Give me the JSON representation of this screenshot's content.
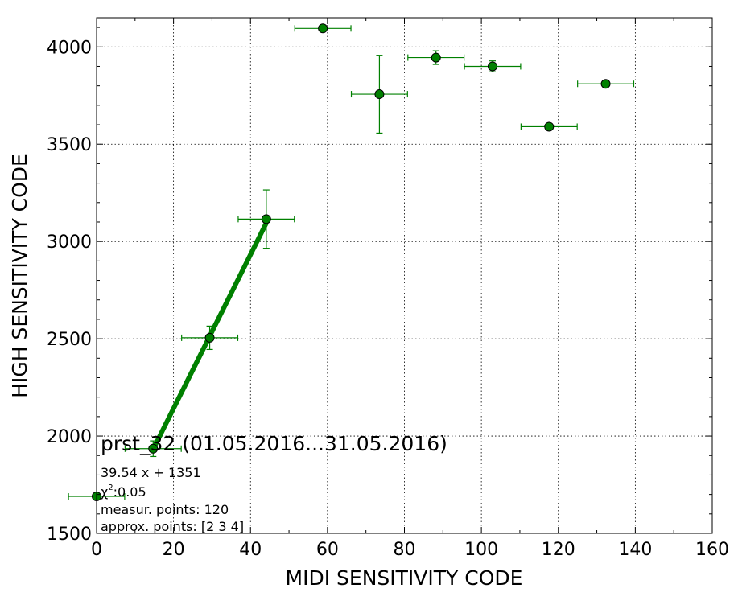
{
  "chart_data": {
    "type": "scatter",
    "xlabel": "MIDI SENSITIVITY CODE",
    "ylabel": "HIGH SENSITIVITY CODE",
    "xlim": [
      0,
      160
    ],
    "ylim": [
      1500,
      4150
    ],
    "xticks": [
      0,
      20,
      40,
      60,
      80,
      100,
      120,
      140,
      160
    ],
    "yticks": [
      1500,
      2000,
      2500,
      3000,
      3500,
      4000
    ],
    "grid": true,
    "points": [
      {
        "x": 0,
        "y": 1690,
        "xerr": 7.3,
        "yerr": 0
      },
      {
        "x": 14.7,
        "y": 1935,
        "xerr": 7.3,
        "yerr": 40
      },
      {
        "x": 29.4,
        "y": 2505,
        "xerr": 7.3,
        "yerr": 60
      },
      {
        "x": 44.1,
        "y": 3115,
        "xerr": 7.3,
        "yerr": 150
      },
      {
        "x": 58.8,
        "y": 4095,
        "xerr": 7.3,
        "yerr": 0
      },
      {
        "x": 73.5,
        "y": 3757,
        "xerr": 7.3,
        "yerr": 200
      },
      {
        "x": 88.2,
        "y": 3945,
        "xerr": 7.3,
        "yerr": 35
      },
      {
        "x": 102.9,
        "y": 3900,
        "xerr": 7.3,
        "yerr": 28
      },
      {
        "x": 117.6,
        "y": 3590,
        "xerr": 7.3,
        "yerr": 0
      },
      {
        "x": 132.3,
        "y": 3810,
        "xerr": 7.3,
        "yerr": 0
      }
    ],
    "fit_line": {
      "x_start": 14.7,
      "x_end": 44.1,
      "slope": 39.54,
      "intercept": 1351
    },
    "colors": {
      "points": "#008000",
      "line": "#008000",
      "grid": "#000000"
    },
    "annotations": {
      "title": "prst_32 (01.05.2016...31.05.2016)",
      "equation": "39.54 x + 1351",
      "chi_label": "χ",
      "chi_sup": "2",
      "chi_value": ":0.05",
      "measur": "measur. points: 120",
      "approx": "approx. points: [2 3 4]"
    }
  }
}
